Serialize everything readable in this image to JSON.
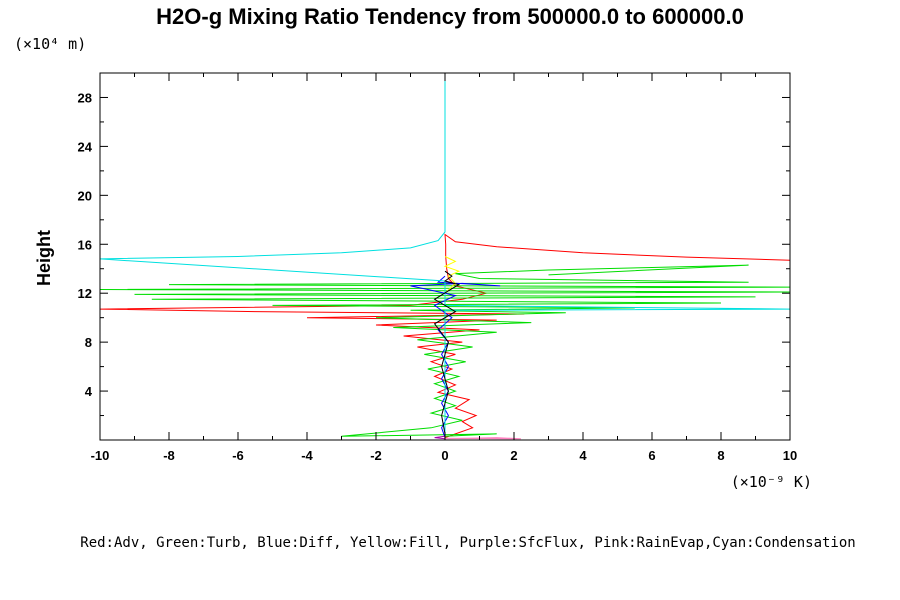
{
  "chart_data": {
    "type": "line",
    "title": "H2O-g Mixing Ratio Tendency from 500000.0 to 600000.0",
    "y_unit_label": "(×10⁴ m)",
    "x_unit_label": "(×10⁻⁹ K)",
    "ylabel": "Height",
    "xlabel": "",
    "xlim": [
      -10,
      10
    ],
    "ylim": [
      0,
      30
    ],
    "x_ticks": [
      -10,
      -8,
      -6,
      -4,
      -2,
      0,
      2,
      4,
      6,
      8,
      10
    ],
    "y_ticks": [
      4,
      8,
      12,
      16,
      20,
      24,
      28
    ],
    "legend_text": "Red:Adv, Green:Turb, Blue:Diff, Yellow:Fill, Purple:SfcFlux, Pink:RainEvap,Cyan:Condensation",
    "legend_position": "bottom",
    "series": [
      {
        "name": "Adv",
        "color": "#ff0000",
        "points": [
          [
            0.0,
            0.2
          ],
          [
            0.3,
            0.5
          ],
          [
            0.8,
            1.0
          ],
          [
            0.5,
            1.5
          ],
          [
            0.9,
            2.0
          ],
          [
            0.3,
            2.6
          ],
          [
            0.7,
            3.3
          ],
          [
            -0.2,
            3.9
          ],
          [
            0.3,
            4.5
          ],
          [
            -0.3,
            5.2
          ],
          [
            0.2,
            5.8
          ],
          [
            -0.4,
            6.4
          ],
          [
            0.3,
            7.0
          ],
          [
            -0.8,
            7.6
          ],
          [
            0.5,
            8.0
          ],
          [
            -1.2,
            8.5
          ],
          [
            1.0,
            9.0
          ],
          [
            -2.0,
            9.4
          ],
          [
            1.5,
            9.8
          ],
          [
            -4.0,
            10.0
          ],
          [
            2.3,
            10.3
          ],
          [
            -5.5,
            10.5
          ],
          [
            -10.0,
            10.7
          ],
          [
            -1.0,
            11.0
          ],
          [
            0.5,
            11.5
          ],
          [
            1.2,
            12.0
          ],
          [
            0.3,
            12.6
          ],
          [
            0.1,
            13.2
          ],
          [
            0.05,
            14.0
          ],
          [
            0.02,
            15.0
          ],
          [
            0.02,
            16.0
          ],
          [
            0.0,
            16.8
          ],
          [
            0.3,
            16.2
          ],
          [
            1.5,
            15.8
          ],
          [
            4.0,
            15.3
          ],
          [
            7.0,
            14.95
          ],
          [
            10.0,
            14.7
          ]
        ]
      },
      {
        "name": "Turb",
        "color": "#00dd00",
        "points": [
          [
            0.0,
            0.3
          ],
          [
            1.5,
            0.5
          ],
          [
            -3.0,
            0.3
          ],
          [
            -0.4,
            1.0
          ],
          [
            0.5,
            1.6
          ],
          [
            -0.4,
            2.2
          ],
          [
            0.3,
            2.8
          ],
          [
            -0.3,
            3.4
          ],
          [
            0.3,
            4.0
          ],
          [
            -0.3,
            4.6
          ],
          [
            0.4,
            5.2
          ],
          [
            -0.5,
            5.8
          ],
          [
            0.6,
            6.4
          ],
          [
            -0.6,
            7.0
          ],
          [
            0.8,
            7.6
          ],
          [
            -0.8,
            8.2
          ],
          [
            1.5,
            8.8
          ],
          [
            -1.5,
            9.2
          ],
          [
            2.5,
            9.6
          ],
          [
            -2.0,
            10.0
          ],
          [
            3.5,
            10.4
          ],
          [
            -1.0,
            10.6
          ],
          [
            5.5,
            10.8
          ],
          [
            -5.0,
            11.0
          ],
          [
            8.0,
            11.2
          ],
          [
            -8.5,
            11.5
          ],
          [
            9.0,
            11.7
          ],
          [
            -9.0,
            11.9
          ],
          [
            10.0,
            12.1
          ],
          [
            -10.0,
            12.3
          ],
          [
            10.0,
            12.5
          ],
          [
            -8.0,
            12.7
          ],
          [
            8.8,
            12.9
          ],
          [
            1.0,
            13.2
          ],
          [
            0.3,
            13.6
          ],
          [
            3.0,
            13.9
          ],
          [
            6.0,
            14.1
          ],
          [
            8.8,
            14.3
          ],
          [
            3.0,
            13.5
          ]
        ]
      },
      {
        "name": "Diff",
        "color": "#0000ff",
        "points": [
          [
            0.0,
            0.2
          ],
          [
            -0.1,
            1.0
          ],
          [
            0.1,
            2.0
          ],
          [
            -0.1,
            3.0
          ],
          [
            0.1,
            4.0
          ],
          [
            -0.1,
            5.0
          ],
          [
            0.1,
            6.0
          ],
          [
            -0.1,
            7.0
          ],
          [
            0.1,
            8.0
          ],
          [
            -0.2,
            9.0
          ],
          [
            0.2,
            10.0
          ],
          [
            -0.3,
            11.0
          ],
          [
            0.3,
            11.8
          ],
          [
            -0.5,
            12.3
          ],
          [
            -1.0,
            12.6
          ],
          [
            0.5,
            12.8
          ],
          [
            1.6,
            12.6
          ],
          [
            -0.2,
            12.9
          ],
          [
            0.0,
            13.4
          ]
        ]
      },
      {
        "name": "Fill",
        "color": "#ffff00",
        "points": [
          [
            0.0,
            12.0
          ],
          [
            0.3,
            12.8
          ],
          [
            0.1,
            13.4
          ],
          [
            0.4,
            13.8
          ],
          [
            0.0,
            14.2
          ],
          [
            0.3,
            14.6
          ],
          [
            0.0,
            15.0
          ]
        ]
      },
      {
        "name": "SfcFlux",
        "color": "#aa00aa",
        "points": [
          [
            0.0,
            0.1
          ],
          [
            -0.3,
            0.2
          ],
          [
            0.0,
            0.3
          ]
        ]
      },
      {
        "name": "RainEvap",
        "color": "#ff80c0",
        "points": [
          [
            0.0,
            0.1
          ],
          [
            1.5,
            0.2
          ],
          [
            2.2,
            0.1
          ],
          [
            0.0,
            0.15
          ]
        ]
      },
      {
        "name": "Condensation",
        "color": "#00e0e0",
        "points": [
          [
            0.0,
            30.0
          ],
          [
            0.0,
            17.0
          ],
          [
            -0.2,
            16.3
          ],
          [
            -1.0,
            15.7
          ],
          [
            -3.0,
            15.3
          ],
          [
            -6.0,
            15.0
          ],
          [
            -10.0,
            14.8
          ],
          [
            0.0,
            13.0
          ],
          [
            0.0,
            11.0
          ],
          [
            10.0,
            10.7
          ],
          [
            0.0,
            10.6
          ],
          [
            0.0,
            0.2
          ]
        ]
      },
      {
        "name": "",
        "color": "#000000",
        "points": [
          [
            0.0,
            0.5
          ],
          [
            -0.1,
            2.0
          ],
          [
            0.1,
            4.0
          ],
          [
            -0.1,
            6.0
          ],
          [
            0.1,
            8.0
          ],
          [
            -0.3,
            9.5
          ],
          [
            0.3,
            10.5
          ],
          [
            -0.3,
            11.5
          ],
          [
            0.1,
            12.2
          ],
          [
            0.4,
            12.7
          ],
          [
            0.0,
            13.0
          ],
          [
            0.2,
            13.4
          ],
          [
            0.0,
            13.8
          ]
        ]
      }
    ]
  }
}
